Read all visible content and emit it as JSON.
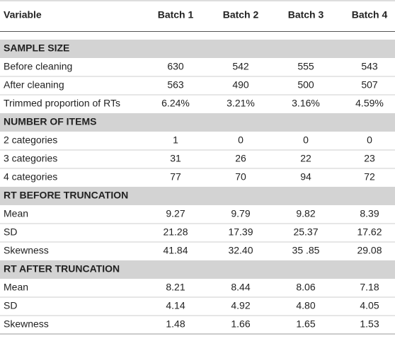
{
  "table": {
    "header": [
      "Variable",
      "Batch 1",
      "Batch 2",
      "Batch 3",
      "Batch 4"
    ],
    "sections": [
      {
        "title": "SAMPLE SIZE",
        "rows": [
          [
            "Before cleaning",
            "630",
            "542",
            "555",
            "543"
          ],
          [
            "After cleaning",
            "563",
            "490",
            "500",
            "507"
          ],
          [
            "Trimmed proportion of RTs",
            "6.24%",
            "3.21%",
            "3.16%",
            "4.59%"
          ]
        ]
      },
      {
        "title": "NUMBER OF ITEMS",
        "rows": [
          [
            "2 categories",
            "1",
            "0",
            "0",
            "0"
          ],
          [
            "3 categories",
            "31",
            "26",
            "22",
            "23"
          ],
          [
            "4 categories",
            "77",
            "70",
            "94",
            "72"
          ]
        ]
      },
      {
        "title": "RT BEFORE TRUNCATION",
        "rows": [
          [
            "Mean",
            "9.27",
            "9.79",
            "9.82",
            "8.39"
          ],
          [
            "SD",
            "21.28",
            "17.39",
            "25.37",
            "17.62"
          ],
          [
            "Skewness",
            "41.84",
            "32.40",
            "35 .85",
            "29.08"
          ]
        ]
      },
      {
        "title": "RT AFTER TRUNCATION",
        "rows": [
          [
            "Mean",
            "8.21",
            "8.44",
            "8.06",
            "7.18"
          ],
          [
            "SD",
            "4.14",
            "4.92",
            "4.80",
            "4.05"
          ],
          [
            "Skewness",
            "1.48",
            "1.66",
            "1.65",
            "1.53"
          ]
        ]
      }
    ]
  }
}
